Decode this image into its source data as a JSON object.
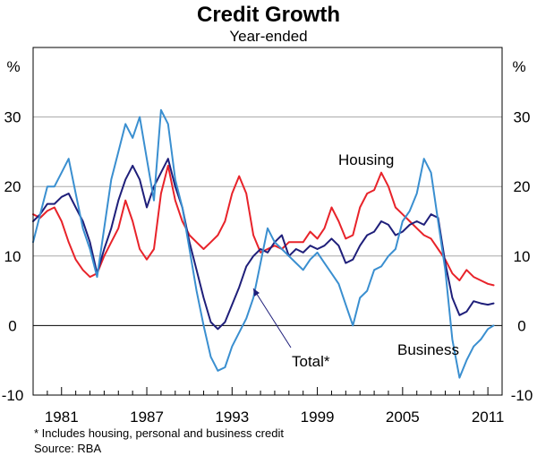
{
  "chart_data": {
    "type": "line",
    "title": "Credit Growth",
    "subtitle": "Year-ended",
    "ylabel_left": "%",
    "ylabel_right": "%",
    "ylim": [
      -10,
      40
    ],
    "yticks": [
      -10,
      0,
      10,
      20,
      30
    ],
    "xlim": [
      1979,
      2012
    ],
    "xticks": [
      1981,
      1987,
      1993,
      1999,
      2005,
      2011
    ],
    "grid": true,
    "colors": {
      "Housing": "#e8232a",
      "Total*": "#1f1f7a",
      "Business": "#3a8fd0"
    },
    "annotation": "Total*",
    "series": [
      {
        "name": "Housing",
        "x": [
          1979.0,
          1979.5,
          1980.0,
          1980.5,
          1981.0,
          1981.5,
          1982.0,
          1982.5,
          1983.0,
          1983.5,
          1984.0,
          1984.5,
          1985.0,
          1985.5,
          1986.0,
          1986.5,
          1987.0,
          1987.5,
          1988.0,
          1988.5,
          1989.0,
          1989.5,
          1990.0,
          1990.5,
          1991.0,
          1991.5,
          1992.0,
          1992.5,
          1993.0,
          1993.5,
          1994.0,
          1994.5,
          1995.0,
          1995.5,
          1996.0,
          1996.5,
          1997.0,
          1997.5,
          1998.0,
          1998.5,
          1999.0,
          1999.5,
          2000.0,
          2000.5,
          2001.0,
          2001.5,
          2002.0,
          2002.5,
          2003.0,
          2003.5,
          2004.0,
          2004.5,
          2005.0,
          2005.5,
          2006.0,
          2006.5,
          2007.0,
          2007.5,
          2008.0,
          2008.5,
          2009.0,
          2009.5,
          2010.0,
          2010.5,
          2011.0,
          2011.4
        ],
        "values": [
          16,
          15.5,
          16.5,
          17,
          15,
          12,
          9.5,
          8,
          7,
          7.5,
          10,
          12,
          14,
          18,
          15,
          11,
          9.5,
          11,
          19,
          23,
          18,
          15,
          13,
          12,
          11,
          12,
          13,
          15,
          19,
          21.5,
          19,
          13,
          10.5,
          11,
          11.5,
          11,
          12,
          12,
          12,
          13.5,
          12.5,
          14,
          17,
          15,
          12.5,
          13,
          17,
          19,
          19.5,
          22,
          20,
          17,
          16,
          15,
          14,
          13,
          12.5,
          11,
          9.5,
          7.5,
          6.5,
          8,
          7,
          6.5,
          6,
          5.8
        ]
      },
      {
        "name": "Total*",
        "x": [
          1979.0,
          1979.5,
          1980.0,
          1980.5,
          1981.0,
          1981.5,
          1982.0,
          1982.5,
          1983.0,
          1983.5,
          1984.0,
          1984.5,
          1985.0,
          1985.5,
          1986.0,
          1986.5,
          1987.0,
          1987.5,
          1988.0,
          1988.5,
          1989.0,
          1989.5,
          1990.0,
          1990.5,
          1991.0,
          1991.5,
          1992.0,
          1992.5,
          1993.0,
          1993.5,
          1994.0,
          1994.5,
          1995.0,
          1995.5,
          1996.0,
          1996.5,
          1997.0,
          1997.5,
          1998.0,
          1998.5,
          1999.0,
          1999.5,
          2000.0,
          2000.5,
          2001.0,
          2001.5,
          2002.0,
          2002.5,
          2003.0,
          2003.5,
          2004.0,
          2004.5,
          2005.0,
          2005.5,
          2006.0,
          2006.5,
          2007.0,
          2007.5,
          2008.0,
          2008.5,
          2009.0,
          2009.5,
          2010.0,
          2010.5,
          2011.0,
          2011.4
        ],
        "values": [
          15,
          16,
          17.5,
          17.5,
          18.5,
          19,
          17,
          15,
          12,
          7.5,
          11,
          14,
          18,
          21,
          23,
          21,
          17,
          20,
          22,
          24,
          20,
          17,
          12,
          8,
          4,
          0.5,
          -0.5,
          0.5,
          3,
          5.5,
          8.5,
          10,
          11,
          10.5,
          12,
          13,
          10,
          11,
          10.5,
          11.5,
          11,
          11.5,
          12.5,
          11.5,
          9,
          9.5,
          11.5,
          13,
          13.5,
          15,
          14.5,
          13,
          13.5,
          14.5,
          15,
          14.5,
          16,
          15.5,
          9,
          4,
          1.5,
          2,
          3.5,
          3.2,
          3,
          3.2
        ]
      },
      {
        "name": "Business",
        "x": [
          1979.0,
          1979.5,
          1980.0,
          1980.5,
          1981.0,
          1981.5,
          1982.0,
          1982.5,
          1983.0,
          1983.5,
          1984.0,
          1984.5,
          1985.0,
          1985.5,
          1986.0,
          1986.5,
          1987.0,
          1987.5,
          1988.0,
          1988.5,
          1989.0,
          1989.5,
          1990.0,
          1990.5,
          1991.0,
          1991.5,
          1992.0,
          1992.5,
          1993.0,
          1993.5,
          1994.0,
          1994.5,
          1995.0,
          1995.5,
          1996.0,
          1996.5,
          1997.0,
          1997.5,
          1998.0,
          1998.5,
          1999.0,
          1999.5,
          2000.0,
          2000.5,
          2001.0,
          2001.5,
          2002.0,
          2002.5,
          2003.0,
          2003.5,
          2004.0,
          2004.5,
          2005.0,
          2005.5,
          2006.0,
          2006.5,
          2007.0,
          2007.5,
          2008.0,
          2008.5,
          2009.0,
          2009.5,
          2010.0,
          2010.5,
          2011.0,
          2011.4
        ],
        "values": [
          12,
          16,
          20,
          20,
          22,
          24,
          19,
          14,
          11,
          7,
          14,
          21,
          25,
          29,
          27,
          30,
          24,
          18,
          31,
          29,
          21,
          17,
          11,
          5,
          0,
          -4.5,
          -6.5,
          -6,
          -3,
          -1,
          1,
          4,
          9,
          14,
          12,
          11,
          10,
          9,
          8,
          9.5,
          10.5,
          9,
          7.5,
          6,
          3,
          0,
          4,
          5,
          8,
          8.5,
          10,
          11,
          15,
          16.5,
          19,
          24,
          22,
          15,
          8,
          -2,
          -7.5,
          -5,
          -3,
          -2,
          -0.5,
          0
        ]
      }
    ],
    "footnotes": [
      "*     Includes housing, personal and business credit",
      "Source: RBA"
    ]
  }
}
